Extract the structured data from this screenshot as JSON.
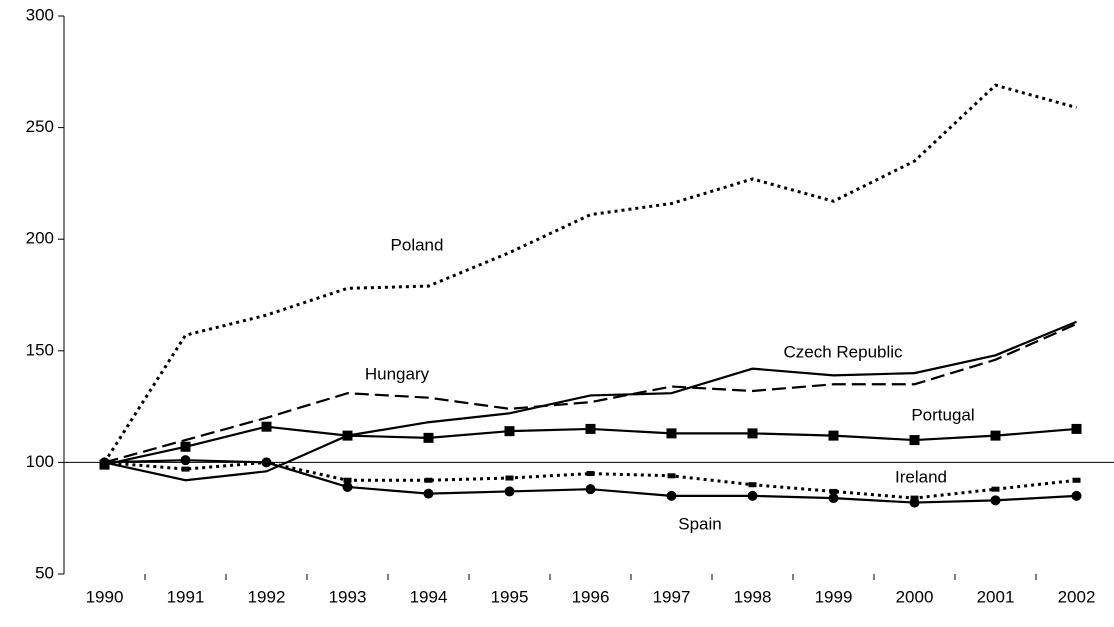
{
  "chart_data": {
    "type": "line",
    "categories": [
      "1990",
      "1991",
      "1992",
      "1993",
      "1994",
      "1995",
      "1996",
      "1997",
      "1998",
      "1999",
      "2000",
      "2001",
      "2002"
    ],
    "series": [
      {
        "name": "Poland",
        "color": "#000000",
        "style": "dotted",
        "marker": "none",
        "values": [
          100,
          157,
          166,
          178,
          179,
          194,
          211,
          216,
          227,
          217,
          235,
          269,
          259
        ]
      },
      {
        "name": "Czech Republic",
        "color": "#000000",
        "style": "solid",
        "marker": "none",
        "values": [
          100,
          92,
          96,
          112,
          118,
          122,
          130,
          131,
          142,
          139,
          140,
          148,
          163
        ]
      },
      {
        "name": "Hungary",
        "color": "#000000",
        "style": "dashed",
        "marker": "none",
        "values": [
          100,
          110,
          120,
          131,
          129,
          124,
          127,
          134,
          132,
          135,
          135,
          146,
          162
        ]
      },
      {
        "name": "Portugal",
        "color": "#000000",
        "style": "solid",
        "marker": "square",
        "values": [
          99,
          107,
          116,
          112,
          111,
          114,
          115,
          113,
          113,
          112,
          110,
          112,
          115
        ]
      },
      {
        "name": "Ireland",
        "color": "#000000",
        "style": "dotted",
        "marker": "dash",
        "values": [
          100,
          97,
          100,
          92,
          92,
          93,
          95,
          94,
          90,
          87,
          84,
          88,
          92
        ]
      },
      {
        "name": "Spain",
        "color": "#000000",
        "style": "solid",
        "marker": "circle",
        "values": [
          100,
          101,
          100,
          89,
          86,
          87,
          88,
          85,
          85,
          84,
          82,
          83,
          85
        ]
      }
    ],
    "ylim": [
      50,
      300
    ],
    "yticks": [
      50,
      100,
      150,
      200,
      250,
      300
    ],
    "x_axis_crosses": 100,
    "grid": false
  }
}
